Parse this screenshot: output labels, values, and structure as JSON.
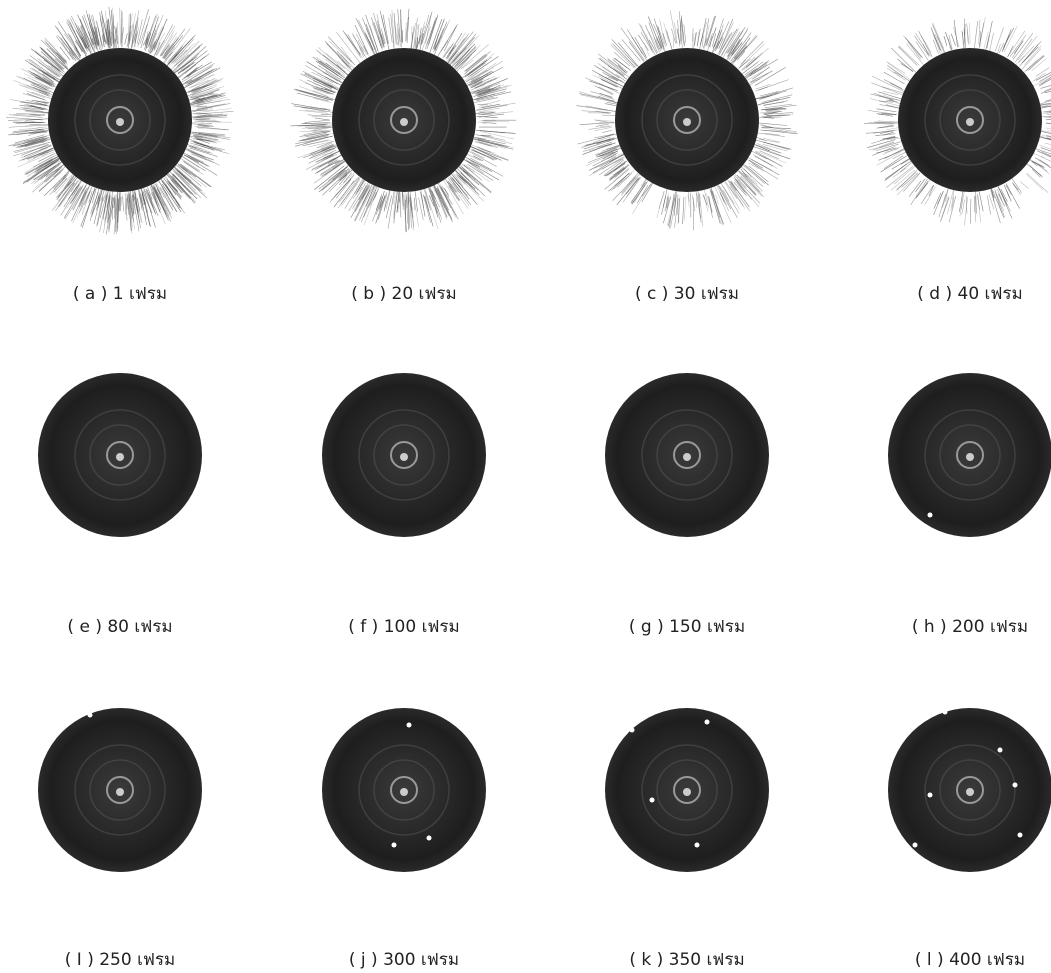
{
  "panels": [
    {
      "caption": "( a ) 1 เฟรม"
    },
    {
      "caption": "( b ) 20 เฟรม"
    },
    {
      "caption": "( c ) 30 เฟรม"
    },
    {
      "caption": "( d ) 40 เฟรม"
    },
    {
      "caption": "( e ) 80 เฟรม"
    },
    {
      "caption": "( f ) 100 เฟรม"
    },
    {
      "caption": "( g ) 150 เฟรม"
    },
    {
      "caption": "( h ) 200 เฟรม"
    },
    {
      "caption": "( I ) 250 เฟรม"
    },
    {
      "caption": "( j ) 300 เฟรม"
    },
    {
      "caption": "( k ) 350 เฟรม"
    },
    {
      "caption": "( l ) 400 เฟรม"
    }
  ]
}
